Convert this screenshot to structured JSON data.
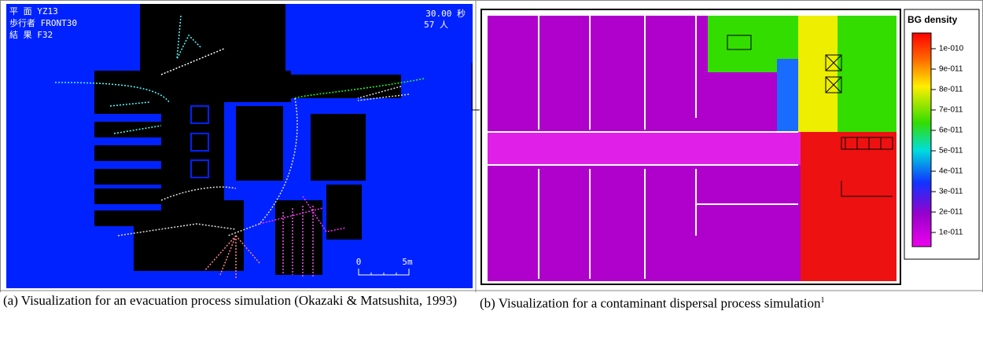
{
  "panel_a": {
    "plan": "平 面 YZ13",
    "pedestrian": "歩行者 FRONT30",
    "result": "結 果 F32",
    "time": "30.00 秒",
    "people": "57 人",
    "scale_zero": "0",
    "scale_length": "5m"
  },
  "panel_b": {
    "legend_title": "BG density",
    "legend_ticks": [
      "1e-010",
      "9e-011",
      "8e-011",
      "7e-011",
      "6e-011",
      "5e-011",
      "4e-011",
      "3e-011",
      "2e-011",
      "1e-011"
    ]
  },
  "captions": {
    "a": "(a) Visualization for an evacuation process simulation (Okazaki & Matsushita, 1993)",
    "b": {
      "text": "(b) Visualization for a contaminant dispersal process simulation",
      "footnote": "1"
    }
  }
}
